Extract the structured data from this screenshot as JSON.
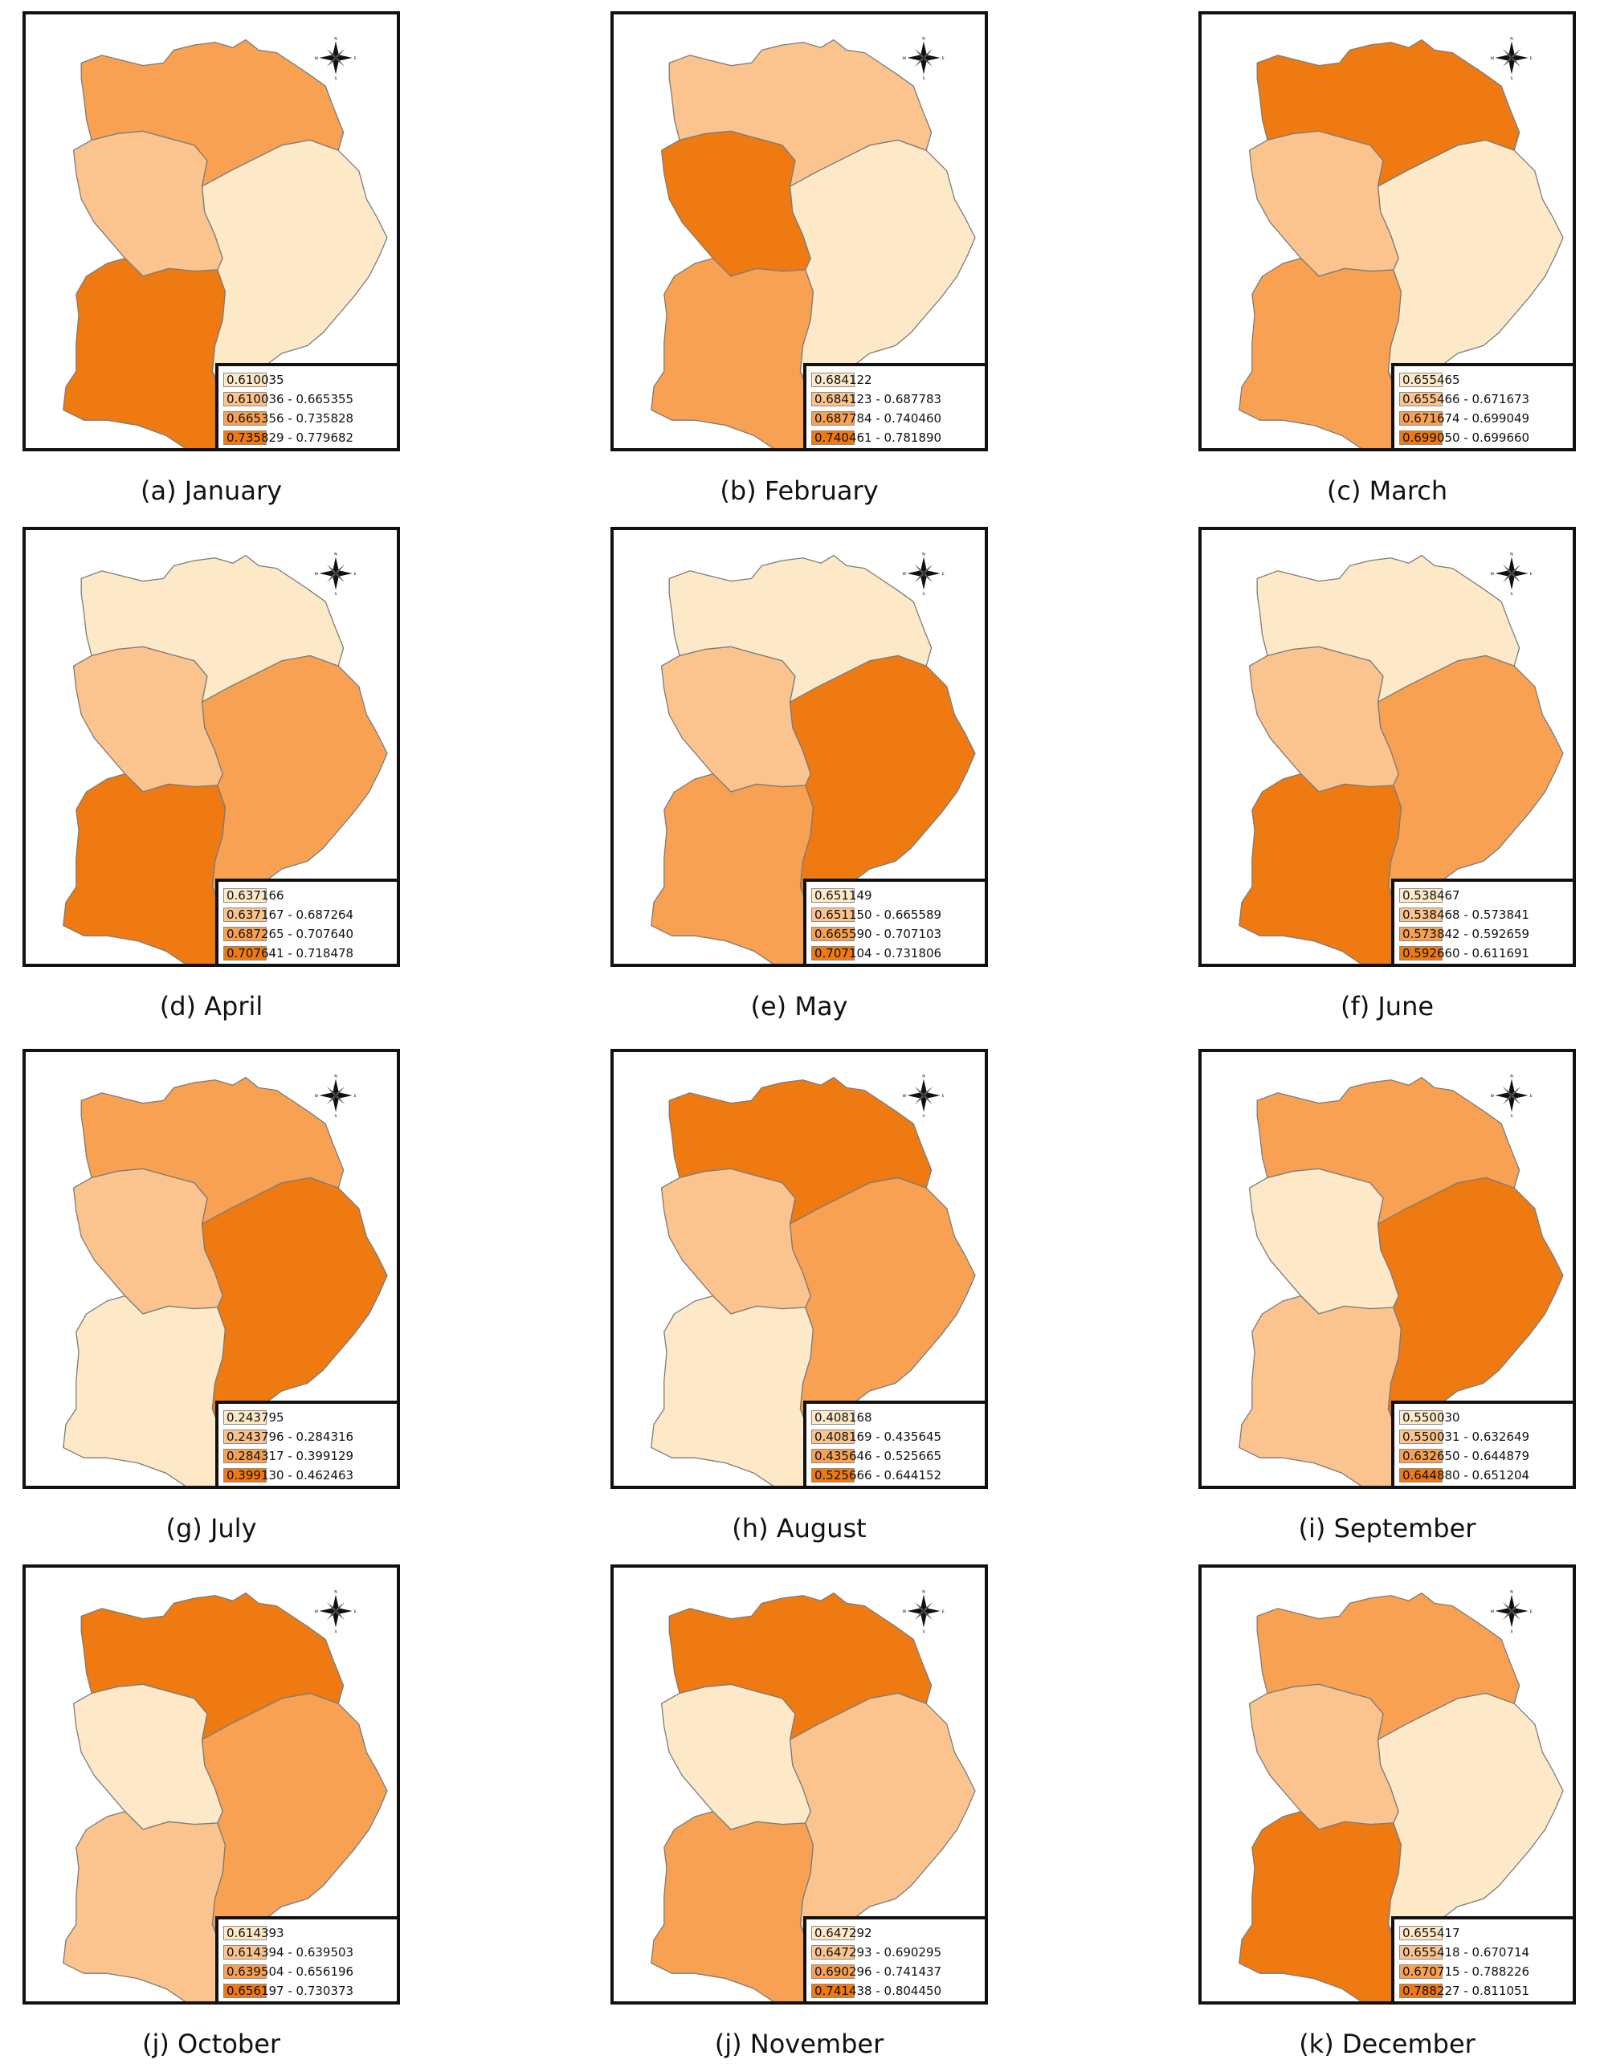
{
  "palette": [
    "#fde9c8",
    "#fbc48e",
    "#f8a152",
    "#ef7a12"
  ],
  "compass_icon": "north-arrow-compass-rose",
  "maps": [
    {
      "caption": "(a) January",
      "classes": [
        1,
        3,
        0,
        2
      ],
      "legend": [
        "0.610035",
        "0.610036 - 0.665355",
        "0.665356 - 0.735828",
        "0.735829 - 0.779682"
      ]
    },
    {
      "caption": "(b) February",
      "classes": [
        3,
        2,
        0,
        1
      ],
      "legend": [
        "0.684122",
        "0.684123 - 0.687783",
        "0.687784 - 0.740460",
        "0.740461 - 0.781890"
      ]
    },
    {
      "caption": "(c) March",
      "classes": [
        1,
        2,
        0,
        3
      ],
      "legend": [
        "0.655465",
        "0.655466 - 0.671673",
        "0.671674 - 0.699049",
        "0.699050 - 0.699660"
      ]
    },
    {
      "caption": "(d) April",
      "classes": [
        1,
        3,
        2,
        0
      ],
      "legend": [
        "0.637166",
        "0.637167 - 0.687264",
        "0.687265 - 0.707640",
        "0.707641 - 0.718478"
      ]
    },
    {
      "caption": "(e) May",
      "classes": [
        1,
        2,
        3,
        0
      ],
      "legend": [
        "0.651149",
        "0.651150 - 0.665589",
        "0.665590 - 0.707103",
        "0.707104 - 0.731806"
      ]
    },
    {
      "caption": "(f) June",
      "classes": [
        1,
        3,
        2,
        0
      ],
      "legend": [
        "0.538467",
        "0.538468 - 0.573841",
        "0.573842 - 0.592659",
        "0.592660 - 0.611691"
      ]
    },
    {
      "caption": "(g) July",
      "classes": [
        1,
        0,
        3,
        2
      ],
      "legend": [
        "0.243795",
        "0.243796 - 0.284316",
        "0.284317 - 0.399129",
        "0.399130 - 0.462463"
      ]
    },
    {
      "caption": "(h) August",
      "classes": [
        1,
        0,
        2,
        3
      ],
      "legend": [
        "0.408168",
        "0.408169 - 0.435645",
        "0.435646 - 0.525665",
        "0.525666 - 0.644152"
      ]
    },
    {
      "caption": "(i) September",
      "classes": [
        0,
        1,
        3,
        2
      ],
      "legend": [
        "0.550030",
        "0.550031 - 0.632649",
        "0.632650 - 0.644879",
        "0.644880 - 0.651204"
      ]
    },
    {
      "caption": "(j) October",
      "classes": [
        0,
        1,
        2,
        3
      ],
      "legend": [
        "0.614393",
        "0.614394 - 0.639503",
        "0.639504 - 0.656196",
        "0.656197 - 0.730373"
      ]
    },
    {
      "caption": "(j) November",
      "classes": [
        0,
        2,
        1,
        3
      ],
      "legend": [
        "0.647292",
        "0.647293 - 0.690295",
        "0.690296 - 0.741437",
        "0.741438 - 0.804450"
      ]
    },
    {
      "caption": "(k) December",
      "classes": [
        1,
        3,
        0,
        2
      ],
      "legend": [
        "0.655417",
        "0.655418 - 0.670714",
        "0.670715 - 0.788226",
        "0.788227 - 0.811051"
      ]
    }
  ]
}
